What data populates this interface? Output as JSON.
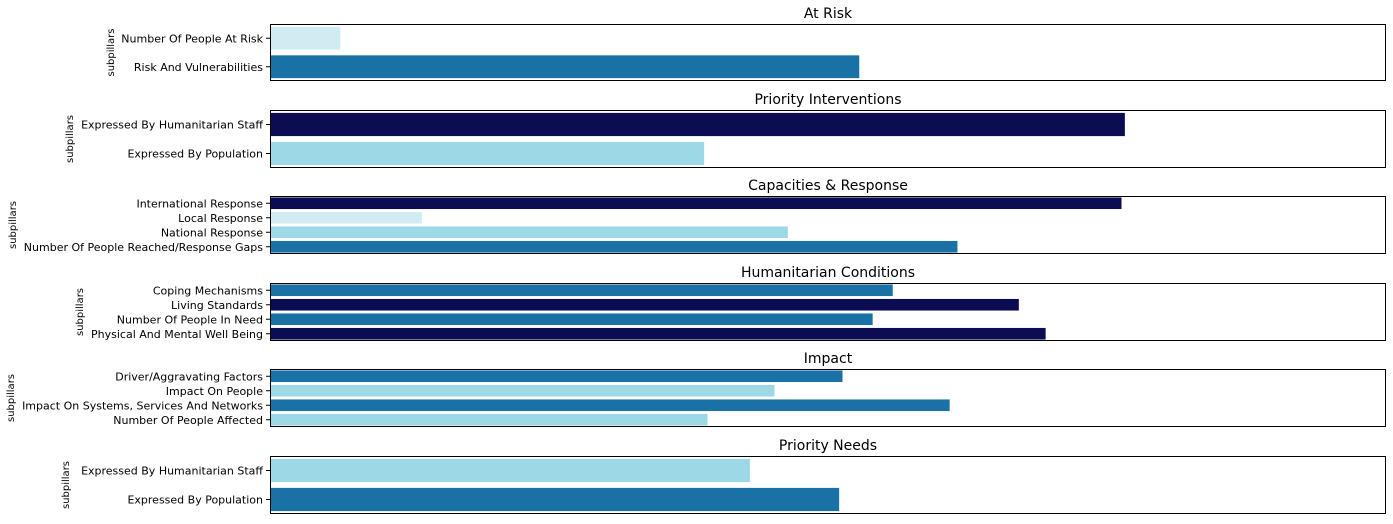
{
  "chart_data": [
    {
      "type": "bar",
      "orientation": "horizontal",
      "title": "At Risk",
      "ylabel": "subpillars",
      "xlim": [
        0,
        1
      ],
      "categories": [
        "Number Of People At Risk",
        "Risk And Vulnerabilities"
      ],
      "values": [
        0.063,
        0.528
      ],
      "colors": [
        "#d1ebf3",
        "#1a71a6"
      ]
    },
    {
      "type": "bar",
      "orientation": "horizontal",
      "title": "Priority Interventions",
      "ylabel": "subpillars",
      "xlim": [
        0,
        1
      ],
      "categories": [
        "Expressed By Humanitarian Staff",
        "Expressed By Population"
      ],
      "values": [
        0.766,
        0.389
      ],
      "colors": [
        "#0c0c52",
        "#9cd8e5"
      ]
    },
    {
      "type": "bar",
      "orientation": "horizontal",
      "title": "Capacities & Response",
      "ylabel": "subpillars",
      "xlim": [
        0,
        1
      ],
      "categories": [
        "International Response",
        "Local Response",
        "National Response",
        "Number Of People Reached/Response Gaps"
      ],
      "values": [
        0.763,
        0.136,
        0.464,
        0.616
      ],
      "colors": [
        "#0c0c52",
        "#d1ebf3",
        "#9cd8e5",
        "#1a71a6"
      ]
    },
    {
      "type": "bar",
      "orientation": "horizontal",
      "title": "Humanitarian Conditions",
      "ylabel": "subpillars",
      "xlim": [
        0,
        1
      ],
      "categories": [
        "Coping Mechanisms",
        "Living Standards",
        "Number Of People In Need",
        "Physical And Mental Well Being"
      ],
      "values": [
        0.558,
        0.671,
        0.54,
        0.695
      ],
      "colors": [
        "#1a71a6",
        "#0c0c52",
        "#1a71a6",
        "#0c0c52"
      ]
    },
    {
      "type": "bar",
      "orientation": "horizontal",
      "title": "Impact",
      "ylabel": "subpillars",
      "xlim": [
        0,
        1
      ],
      "categories": [
        "Driver/Aggravating Factors",
        "Impact On People",
        "Impact On Systems, Services And Networks",
        "Number Of People Affected"
      ],
      "values": [
        0.513,
        0.452,
        0.609,
        0.392
      ],
      "colors": [
        "#1a71a6",
        "#9cd8e5",
        "#1a71a6",
        "#9cd8e5"
      ]
    },
    {
      "type": "bar",
      "orientation": "horizontal",
      "title": "Priority Needs",
      "ylabel": "subpillars",
      "xlim": [
        0,
        1
      ],
      "categories": [
        "Expressed By Humanitarian Staff",
        "Expressed By Population"
      ],
      "values": [
        0.43,
        0.51
      ],
      "colors": [
        "#9cd8e5",
        "#1a71a6"
      ]
    }
  ]
}
